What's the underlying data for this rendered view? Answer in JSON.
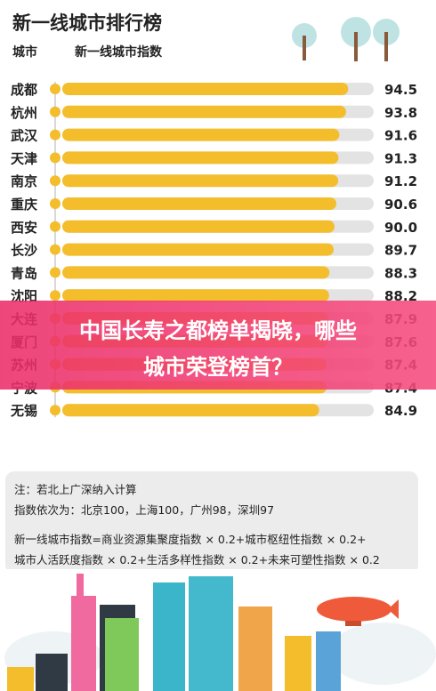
{
  "title": "新一线城市排行榜",
  "col_headers": {
    "city": "城市",
    "index": "新一线城市指数"
  },
  "banner": {
    "line1": "中国长寿之都榜单揭晓，哪些",
    "line2": "城市荣登榜首？"
  },
  "notes": {
    "line1": "注：若北上广深纳入计算",
    "line2": "指数依次为：北京100，上海100，广州98，深圳97",
    "line3": "新一线城市指数=商业资源集聚度指数 × 0.2+城市枢纽性指数 × 0.2+",
    "line4": "城市人活跃度指数 × 0.2+生活多样性指数 × 0.2+未来可塑性指数 × 0.2"
  },
  "colors": {
    "bar": "#f3bd2c",
    "track": "#e3e3e3",
    "banner": "#ee3a72",
    "dot": "#f3bd2c"
  },
  "chart_data": {
    "type": "bar",
    "orientation": "horizontal",
    "xlim": [
      0,
      100
    ],
    "categories": [
      "成都",
      "杭州",
      "武汉",
      "天津",
      "南京",
      "重庆",
      "西安",
      "长沙",
      "青岛",
      "沈阳",
      "大连",
      "厦门",
      "苏州",
      "宁波",
      "无锡"
    ],
    "values": [
      94.5,
      93.8,
      91.6,
      91.3,
      91.2,
      90.6,
      90.0,
      89.7,
      88.3,
      88.2,
      87.9,
      87.6,
      87.4,
      87.4,
      84.9
    ],
    "labels": [
      "94.5",
      "93.8",
      "91.6",
      "91.3",
      "91.2",
      "90.6",
      "90.0",
      "89.7",
      "88.3",
      "88.2",
      "87.9",
      "87.6",
      "87.4",
      "87.4",
      "84.9"
    ]
  }
}
